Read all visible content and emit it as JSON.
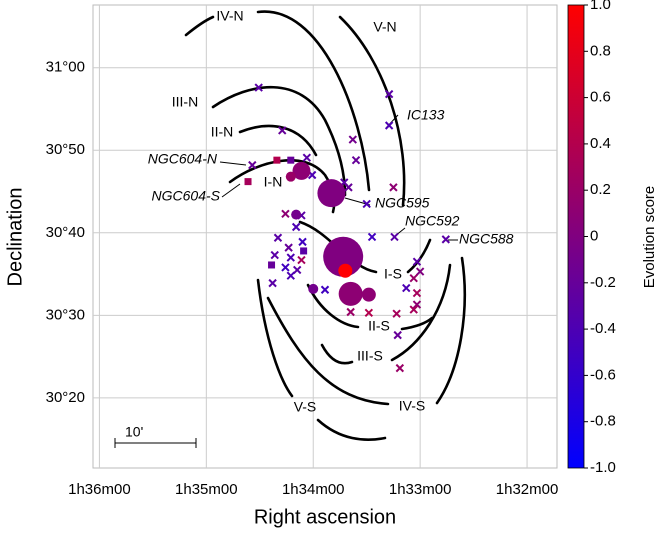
{
  "chart_data": {
    "type": "scatter",
    "xlabel": "Right ascension",
    "ylabel": "Declination",
    "xlim": [
      36.06,
      31.72
    ],
    "ylim": [
      11.5,
      67.6
    ],
    "xticks": [
      {
        "value": 36,
        "label": "1h36m00"
      },
      {
        "value": 35,
        "label": "1h35m00"
      },
      {
        "value": 34,
        "label": "1h34m00"
      },
      {
        "value": 33,
        "label": "1h33m00"
      },
      {
        "value": 32,
        "label": "1h32m00"
      }
    ],
    "yticks": [
      {
        "value": 20,
        "label": "30°20"
      },
      {
        "value": 30,
        "label": "30°30"
      },
      {
        "value": 40,
        "label": "30°40"
      },
      {
        "value": 50,
        "label": "30°50"
      },
      {
        "value": 60,
        "label": "31°00"
      }
    ],
    "grid": true,
    "colormap": [
      "#0000ff",
      "#800080",
      "#ff0000"
    ],
    "colorbar": {
      "label": "Evolution score",
      "lim": [
        -1,
        1
      ],
      "ticks": [
        {
          "value": 1,
          "label": "1.0"
        },
        {
          "value": 0.8,
          "label": "0.8"
        },
        {
          "value": 0.6,
          "label": "0.6"
        },
        {
          "value": 0.4,
          "label": "0.4"
        },
        {
          "value": 0.2,
          "label": "0.2"
        },
        0,
        {
          "value": -0.2,
          "label": "-0.2"
        },
        {
          "value": -0.4,
          "label": "-0.4"
        },
        {
          "value": -0.6,
          "label": "-0.6"
        },
        {
          "value": -0.8,
          "label": "-0.8"
        },
        {
          "value": -1,
          "label": "-1.0"
        }
      ]
    },
    "series": [
      {
        "marker": "cross",
        "x": [
          34.51,
          34.29,
          33.63,
          33.29,
          33.29,
          34.57,
          34.06,
          33.6,
          34.01,
          33.25,
          33.5,
          33.71,
          33.67,
          34.26,
          34.11,
          34.16,
          34.33,
          34.1,
          34.23,
          34.36,
          34.21,
          34.26,
          34.15,
          34.11,
          34.21,
          34.38,
          33.89,
          33.45,
          33.24,
          32.76,
          33.03,
          33.0,
          33.06,
          33.13,
          33.03,
          33.03,
          33.06,
          33.22,
          33.65,
          33.48,
          33.21,
          33.19
        ],
        "y": [
          57.6,
          52.4,
          51.3,
          56.8,
          53.0,
          48.2,
          49.1,
          48.8,
          47.0,
          45.5,
          43.5,
          46.1,
          45.5,
          42.3,
          42.1,
          40.7,
          39.4,
          38.9,
          38.2,
          37.3,
          37.0,
          35.8,
          35.5,
          36.7,
          34.8,
          33.9,
          33.1,
          39.5,
          39.5,
          39.2,
          36.5,
          35.3,
          34.5,
          33.3,
          32.7,
          31.3,
          30.7,
          30.2,
          30.4,
          30.3,
          27.6,
          23.6
        ],
        "c": [
          -0.3,
          -0.2,
          -0.1,
          -0.3,
          -0.4,
          -0.2,
          -0.3,
          -0.2,
          -0.4,
          0.1,
          -0.4,
          -0.3,
          -0.2,
          0.1,
          -0.3,
          -0.4,
          -0.3,
          -0.5,
          -0.2,
          -0.3,
          -0.4,
          -0.5,
          -0.3,
          0.3,
          -0.4,
          -0.3,
          -0.5,
          -0.5,
          -0.3,
          -0.3,
          -0.3,
          0.0,
          0.2,
          -0.4,
          0.3,
          0.1,
          0.3,
          0.3,
          0.2,
          0.4,
          -0.2,
          0.2
        ]
      },
      {
        "marker": "square",
        "x": [
          34.34,
          34.21,
          34.61,
          34.09,
          34.39
        ],
        "y": [
          48.8,
          48.8,
          46.2,
          37.8,
          36.1
        ],
        "c": [
          0.4,
          -0.2,
          0.3,
          -0.3,
          -0.2
        ]
      },
      {
        "marker": "circle",
        "x": [
          34.11,
          34.21,
          33.83,
          34.16,
          33.72,
          33.7,
          33.65,
          33.48,
          34.0
        ],
        "y": [
          47.5,
          46.8,
          44.8,
          42.2,
          37.1,
          35.4,
          32.6,
          32.5,
          33.2
        ],
        "c": [
          0.1,
          0.2,
          0.0,
          -0.1,
          0.0,
          1.0,
          0.1,
          0.1,
          -0.1
        ],
        "sizes": [
          9,
          5,
          14,
          5,
          20,
          7,
          12,
          7,
          5
        ]
      }
    ],
    "arm_labels": [
      "IV-N",
      "V-N",
      "III-N",
      "II-N",
      "I-N",
      "I-S",
      "II-S",
      "III-S",
      "IV-S",
      "V-S"
    ],
    "region_labels": [
      "IC133",
      "NGC595",
      "NGC592",
      "NGC588",
      "NGC604-N",
      "NGC604-S"
    ],
    "scale_label": "10'"
  }
}
